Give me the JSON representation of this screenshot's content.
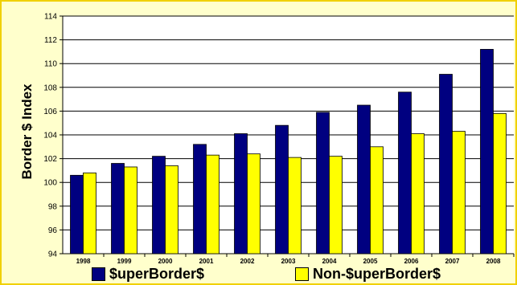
{
  "chart_data": {
    "type": "bar",
    "categories": [
      "1998",
      "1999",
      "2000",
      "2001",
      "2002",
      "2003",
      "2004",
      "2005",
      "2006",
      "2007",
      "2008"
    ],
    "series": [
      {
        "name": "$uperBorder$",
        "color": "#000080",
        "values": [
          100.6,
          101.6,
          102.2,
          103.2,
          104.1,
          104.8,
          105.9,
          106.5,
          107.6,
          109.1,
          111.2
        ]
      },
      {
        "name": "Non-$uperBorder$",
        "color": "#ffff00",
        "values": [
          100.8,
          101.3,
          101.4,
          102.3,
          102.4,
          102.1,
          102.2,
          103.0,
          104.1,
          104.3,
          105.8
        ]
      }
    ],
    "ylabel": "Border $ Index",
    "ylim": [
      94,
      114
    ],
    "yticks": [
      94,
      96,
      98,
      100,
      102,
      104,
      106,
      108,
      110,
      112,
      114
    ],
    "grid": true,
    "legend_position": "bottom",
    "plot_background": "#ffffff",
    "figure_background": "#ffffcc"
  }
}
